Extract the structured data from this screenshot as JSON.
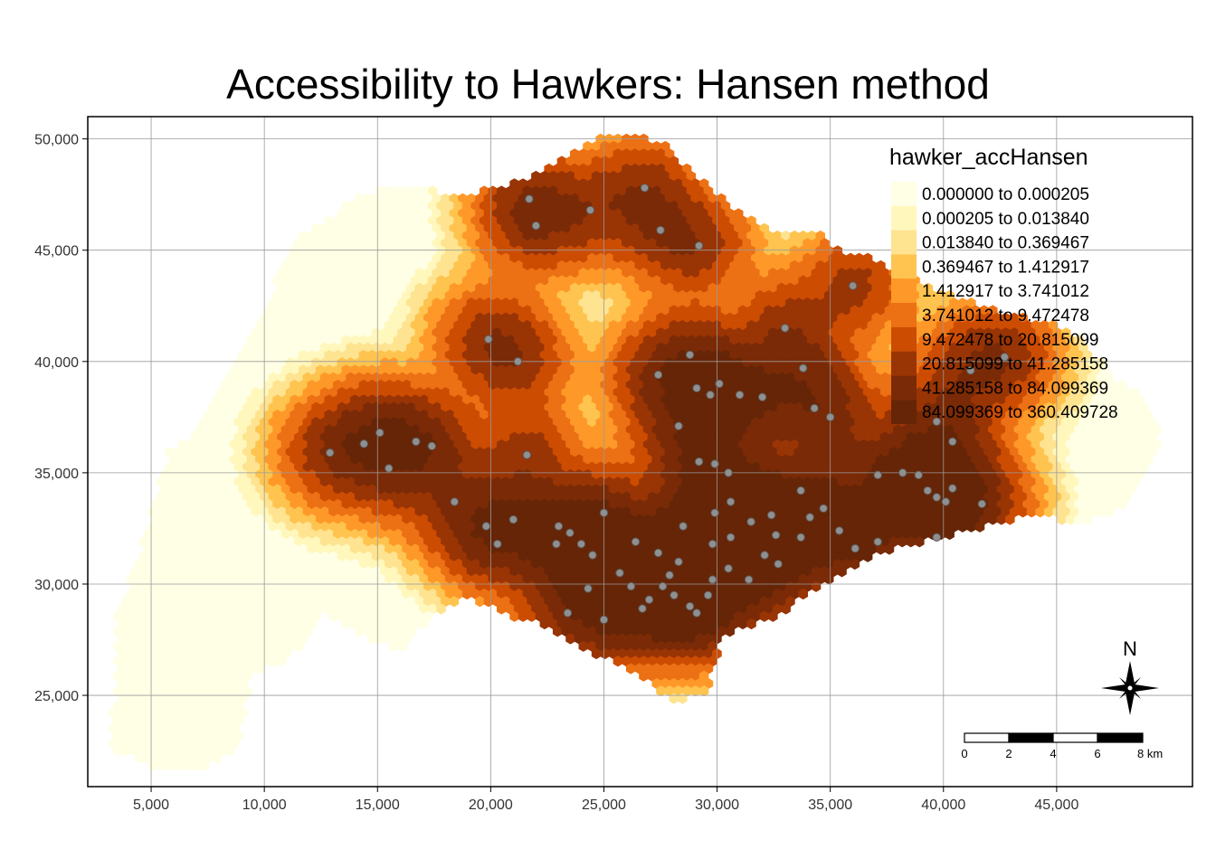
{
  "title": "Accessibility to Hawkers: Hansen method",
  "chart_data": {
    "type": "heatmap",
    "title": "Accessibility to Hawkers: Hansen method",
    "xlim": [
      2200,
      51000
    ],
    "ylim": [
      20900,
      51000
    ],
    "x_ticks": [
      5000,
      10000,
      15000,
      20000,
      25000,
      30000,
      35000,
      40000,
      45000
    ],
    "x_tick_labels": [
      "5,000",
      "10,000",
      "15,000",
      "20,000",
      "25,000",
      "30,000",
      "35,000",
      "40,000",
      "45,000"
    ],
    "y_ticks": [
      25000,
      30000,
      35000,
      40000,
      45000,
      50000
    ],
    "y_tick_labels": [
      "25,000",
      "30,000",
      "35,000",
      "40,000",
      "45,000",
      "50,000"
    ],
    "grid": true,
    "legend": {
      "title": "hawker_accHansen",
      "placement": "top-right",
      "classes": [
        {
          "label": "0.000000 to 0.000205",
          "color": "#ffffe5"
        },
        {
          "label": "0.000205 to 0.013840",
          "color": "#fff7bc"
        },
        {
          "label": "0.013840 to 0.369467",
          "color": "#fee391"
        },
        {
          "label": "0.369467 to 1.412917",
          "color": "#fec44f"
        },
        {
          "label": "1.412917 to 3.741012",
          "color": "#fe9929"
        },
        {
          "label": "3.741012 to 9.472478",
          "color": "#ec7014"
        },
        {
          "label": "9.472478 to 20.815099",
          "color": "#cc4c02"
        },
        {
          "label": "20.815099 to 41.285158",
          "color": "#993404"
        },
        {
          "label": "41.285158 to 84.099369",
          "color": "#7a2a06"
        },
        {
          "label": "84.099369 to 360.409728",
          "color": "#662506"
        }
      ]
    },
    "hawker_centres": [
      [
        21700,
        47300
      ],
      [
        22000,
        46100
      ],
      [
        24400,
        46800
      ],
      [
        26800,
        47800
      ],
      [
        27500,
        45900
      ],
      [
        29200,
        45200
      ],
      [
        19900,
        41000
      ],
      [
        21200,
        40000
      ],
      [
        12900,
        35900
      ],
      [
        14400,
        36300
      ],
      [
        15100,
        36800
      ],
      [
        15500,
        35200
      ],
      [
        16700,
        36400
      ],
      [
        17400,
        36200
      ],
      [
        21600,
        35800
      ],
      [
        18400,
        33700
      ],
      [
        19800,
        32600
      ],
      [
        20300,
        31800
      ],
      [
        21000,
        32900
      ],
      [
        23000,
        32600
      ],
      [
        23500,
        32300
      ],
      [
        24000,
        31800
      ],
      [
        24500,
        31300
      ],
      [
        25000,
        33200
      ],
      [
        23400,
        28700
      ],
      [
        25000,
        28400
      ],
      [
        26200,
        29900
      ],
      [
        27000,
        29300
      ],
      [
        27600,
        29900
      ],
      [
        28100,
        29500
      ],
      [
        28800,
        29000
      ],
      [
        29100,
        28700
      ],
      [
        29600,
        29500
      ],
      [
        27400,
        39400
      ],
      [
        28800,
        40300
      ],
      [
        29100,
        38800
      ],
      [
        29700,
        38500
      ],
      [
        30100,
        39000
      ],
      [
        31000,
        38500
      ],
      [
        32000,
        38400
      ],
      [
        28300,
        37100
      ],
      [
        29200,
        35500
      ],
      [
        29900,
        35400
      ],
      [
        30500,
        35000
      ],
      [
        30600,
        33700
      ],
      [
        29900,
        33200
      ],
      [
        29800,
        31800
      ],
      [
        30600,
        32100
      ],
      [
        31500,
        32800
      ],
      [
        32400,
        33100
      ],
      [
        32600,
        32200
      ],
      [
        33700,
        32100
      ],
      [
        33700,
        34200
      ],
      [
        34100,
        33000
      ],
      [
        33000,
        41500
      ],
      [
        33800,
        39700
      ],
      [
        34300,
        37900
      ],
      [
        35000,
        37500
      ],
      [
        36000,
        43400
      ],
      [
        35400,
        32400
      ],
      [
        36100,
        31600
      ],
      [
        37100,
        31900
      ],
      [
        37100,
        34900
      ],
      [
        38200,
        35000
      ],
      [
        38900,
        34900
      ],
      [
        39300,
        34200
      ],
      [
        39700,
        33900
      ],
      [
        40100,
        33700
      ],
      [
        40400,
        34300
      ],
      [
        41700,
        33600
      ],
      [
        40400,
        36400
      ],
      [
        39700,
        37300
      ],
      [
        41200,
        39600
      ],
      [
        42700,
        40200
      ],
      [
        39700,
        32100
      ],
      [
        27400,
        31400
      ],
      [
        26400,
        31900
      ],
      [
        28500,
        32600
      ],
      [
        22900,
        31800
      ],
      [
        25700,
        30500
      ],
      [
        26700,
        28900
      ],
      [
        28300,
        31000
      ],
      [
        31400,
        30200
      ],
      [
        32700,
        30900
      ],
      [
        24300,
        29800
      ],
      [
        27900,
        30400
      ],
      [
        29800,
        30200
      ],
      [
        30500,
        30700
      ],
      [
        32100,
        31300
      ],
      [
        34700,
        33400
      ]
    ]
  },
  "north_arrow": {
    "label": "N"
  },
  "scale_bar": {
    "labels": [
      "0",
      "2",
      "4",
      "6",
      "8 km"
    ]
  }
}
